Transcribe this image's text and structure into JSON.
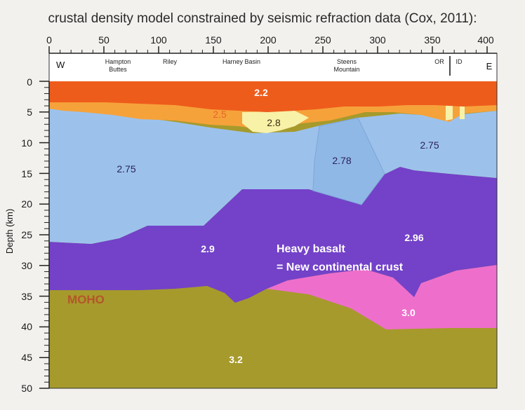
{
  "title": "crustal density model constrained by seismic refraction data (Cox, 2011):",
  "x_axis": {
    "ticks": [
      "0",
      "50",
      "100",
      "150",
      "200",
      "250",
      "300",
      "350",
      "400"
    ]
  },
  "y_axis": {
    "label": "Depth (km)",
    "ticks": [
      "0",
      "5",
      "10",
      "15",
      "20",
      "25",
      "30",
      "35",
      "40",
      "45",
      "50"
    ]
  },
  "places": {
    "west": "W",
    "east": "E",
    "hampton_1": "Hampton",
    "hampton_2": "Buttes",
    "riley": "Riley",
    "harney": "Harney Basin",
    "steens_1": "Steens",
    "steens_2": "Mountain",
    "or": "OR",
    "id": "ID"
  },
  "layers": {
    "upper": "2.2",
    "sed_a": "2.5",
    "sed_b": "2.8",
    "crust_w": "2.75",
    "crust_e": "2.75",
    "steens": "2.78",
    "lower_w": "2.9",
    "lower_e": "2.96",
    "pink": "3.0",
    "mantle": "3.2"
  },
  "annotation": {
    "line1": "Heavy basalt",
    "line2": "= New continental crust"
  },
  "moho_label": "MOHO",
  "colors": {
    "upper": "#ee5c1c",
    "sediment": "#f6a23a",
    "pale": "#f8f1a8",
    "crust": "#9cc2ec",
    "steens": "#8fb8e6",
    "lower": "#7342c8",
    "pink": "#ee6fcb",
    "mantle": "#a69a2c"
  }
}
